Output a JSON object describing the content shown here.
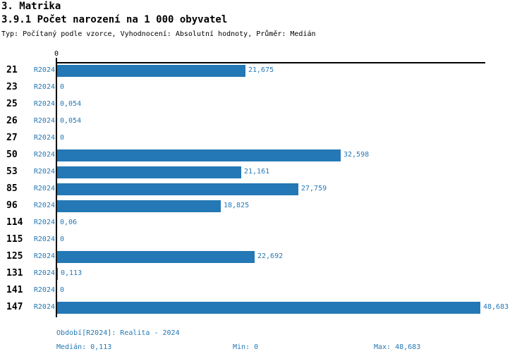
{
  "title": "3. Matrika",
  "subtitle": "3.9.1 Počet narození na 1 000 obyvatel",
  "meta_line": "Typ: Počítaný podle vzorce, Vyhodnocení: Absolutní hodnoty, Průměr: Medián",
  "colors": {
    "bar": "#2478b5",
    "value_text": "#2478b5",
    "axis": "#000000",
    "heading_text": "#000000",
    "background": "#ffffff"
  },
  "chart_data": {
    "type": "bar",
    "orientation": "horizontal",
    "title": "3.9.1 Počet narození na 1 000 obyvatel",
    "xlabel": "",
    "ylabel": "",
    "xlim": [
      0,
      48.683
    ],
    "axis_tick_label": "0",
    "grid": false,
    "legend": false,
    "period_label": "R2024",
    "categories": [
      "21",
      "23",
      "25",
      "26",
      "27",
      "50",
      "53",
      "85",
      "96",
      "114",
      "115",
      "125",
      "131",
      "141",
      "147"
    ],
    "values": [
      21.675,
      0,
      0.054,
      0.054,
      0,
      32.598,
      21.161,
      27.759,
      18.825,
      0.06,
      0,
      22.692,
      0.113,
      0,
      48.683
    ],
    "value_labels": [
      "21,675",
      "0",
      "0,054",
      "0,054",
      "0",
      "32,598",
      "21,161",
      "27,759",
      "18,825",
      "0,06",
      "0",
      "22,692",
      "0,113",
      "0",
      "48,683"
    ]
  },
  "footer": {
    "period_info": "Období[R2024]: Realita - 2024",
    "median": "Medián: 0,113",
    "min": "Min: 0",
    "max": "Max: 48,683"
  }
}
